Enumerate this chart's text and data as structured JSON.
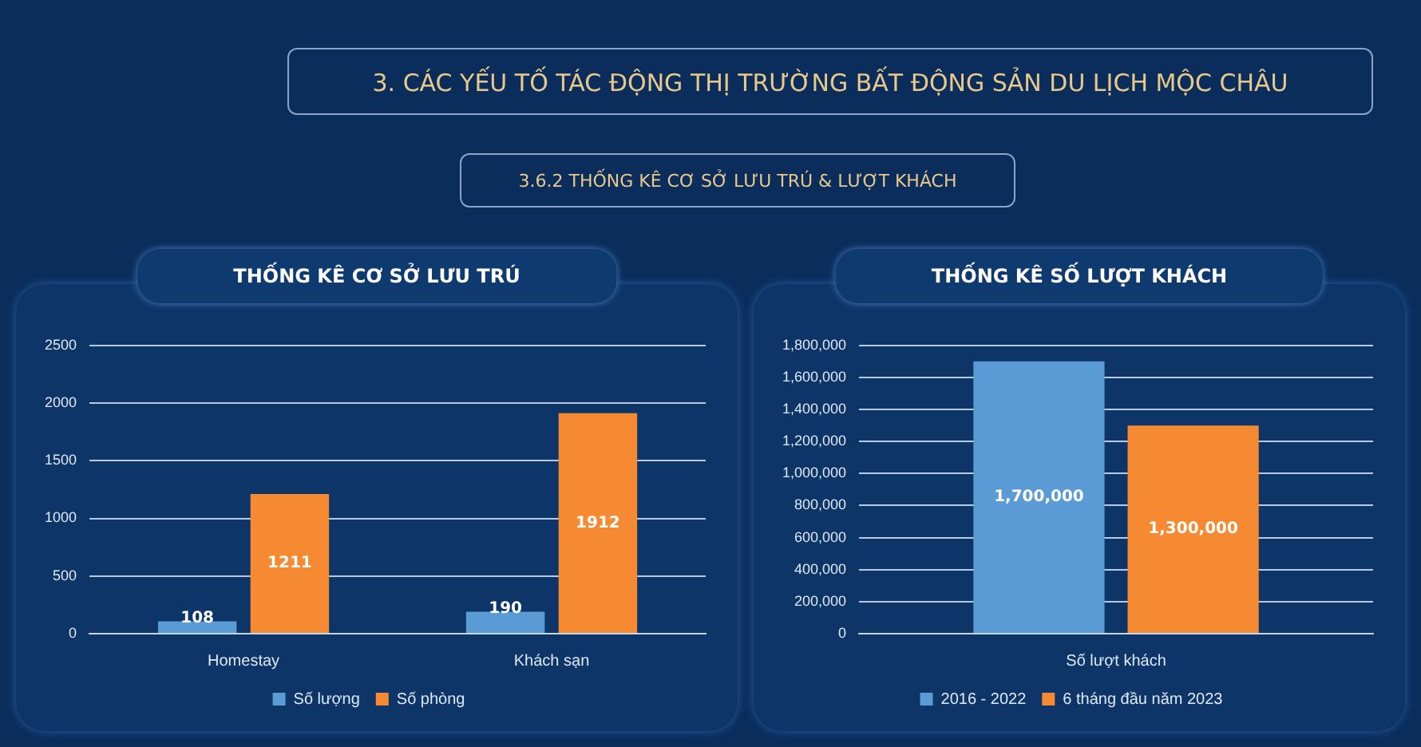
{
  "chart_data": [
    {
      "type": "bar",
      "title": "THỐNG KÊ CƠ SỞ LƯU TRÚ",
      "annotations": [
        "3. CÁC YẾU TỐ TÁC ĐỘNG THỊ TRƯỜNG BẤT ĐỘNG SẢN DU LỊCH MỘC CHÂU",
        "3.6.2 THỐNG KÊ CƠ SỞ LƯU TRÚ & LƯỢT KHÁCH"
      ],
      "categories": [
        "Homestay",
        "Khách sạn"
      ],
      "series": [
        {
          "name": "Số lượng",
          "color": "#5b9bd5",
          "values": [
            108,
            190
          ],
          "value_labels": [
            "108",
            "190"
          ]
        },
        {
          "name": "Số phòng",
          "color": "#f58a32",
          "values": [
            1211,
            1912
          ],
          "value_labels": [
            "1211",
            "1912"
          ]
        }
      ],
      "ylim": [
        0,
        2500
      ],
      "yticks": [
        0,
        500,
        1000,
        1500,
        2000,
        2500
      ],
      "grid": "y",
      "legend": "bottom"
    },
    {
      "type": "bar",
      "title": "THỐNG KÊ SỐ LƯỢT KHÁCH",
      "categories": [
        "Số lượt khách"
      ],
      "series": [
        {
          "name": "2016 - 2022",
          "color": "#5b9bd5",
          "values": [
            1700000
          ],
          "value_labels": [
            "1,700,000"
          ]
        },
        {
          "name": "6 tháng đầu năm 2023",
          "color": "#f58a32",
          "values": [
            1300000
          ],
          "value_labels": [
            "1,300,000"
          ]
        }
      ],
      "ylim": [
        0,
        1800000
      ],
      "yticks": [
        {
          "value": 0,
          "label": "0"
        },
        {
          "value": 200000,
          "label": "200,000"
        },
        {
          "value": 400000,
          "label": "400,000"
        },
        {
          "value": 600000,
          "label": "600,000"
        },
        {
          "value": 800000,
          "label": "800,000"
        },
        {
          "value": 1000000,
          "label": "1,000,000"
        },
        {
          "value": 1200000,
          "label": "1,200,000"
        },
        {
          "value": 1400000,
          "label": "1,400,000"
        },
        {
          "value": 1600000,
          "label": "1,600,000"
        },
        {
          "value": 1800000,
          "label": "1,800,000"
        }
      ],
      "grid": "y",
      "legend": "bottom"
    }
  ]
}
